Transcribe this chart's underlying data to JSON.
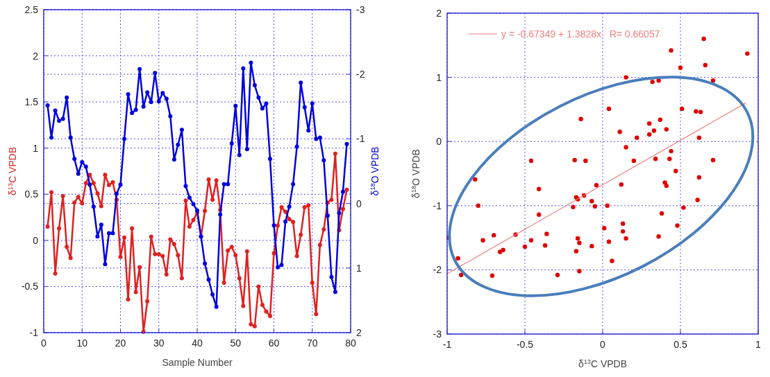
{
  "chart_data": [
    {
      "type": "line",
      "xlabel": "Sample Number",
      "ylabel": "δ$^{13}$C VPDB",
      "y2label": "δ$^{18}$O VPDB",
      "xlim": [
        0,
        80
      ],
      "xticks": [
        0,
        10,
        20,
        30,
        40,
        50,
        60,
        70,
        80
      ],
      "ylim": [
        -1,
        2.5
      ],
      "yticks": [
        -1,
        -0.5,
        0,
        0.5,
        1,
        1.5,
        2,
        2.5
      ],
      "y2lim": [
        2,
        -3
      ],
      "y2ticks": [
        -3,
        -2,
        -1,
        0,
        1,
        2
      ],
      "grid": true,
      "marker": "circle",
      "line_style": "solid",
      "x": [
        1,
        2,
        3,
        4,
        5,
        6,
        7,
        8,
        9,
        10,
        11,
        12,
        13,
        14,
        15,
        16,
        17,
        18,
        19,
        20,
        21,
        22,
        23,
        24,
        25,
        26,
        27,
        28,
        29,
        30,
        31,
        32,
        33,
        34,
        35,
        36,
        37,
        38,
        39,
        40,
        41,
        42,
        43,
        44,
        45,
        46,
        47,
        48,
        49,
        50,
        51,
        52,
        53,
        54,
        55,
        56,
        57,
        58,
        59,
        60,
        61,
        62,
        63,
        64,
        65,
        66,
        67,
        68,
        69,
        70,
        71,
        72,
        73,
        74,
        75,
        76,
        77,
        78,
        79
      ],
      "series": [
        {
          "color": "#e02020",
          "values": [
            0.15,
            0.52,
            -0.36,
            0.13,
            0.48,
            -0.07,
            -0.19,
            0.41,
            0.47,
            0.4,
            0.62,
            0.71,
            0.62,
            0.51,
            0.37,
            0.71,
            0.6,
            0.63,
            0.44,
            -0.18,
            0.03,
            -0.64,
            0.13,
            -0.56,
            -0.29,
            -0.99,
            -0.66,
            0.04,
            -0.15,
            -0.15,
            -0.17,
            -0.37,
            0.01,
            -0.04,
            -0.16,
            -0.41,
            0.43,
            0.15,
            0.22,
            0.3,
            0.04,
            0.32,
            0.66,
            0.44,
            0.65,
            0.33,
            -0.46,
            -0.11,
            -0.07,
            -0.16,
            -0.41,
            -0.71,
            -0.12,
            -0.91,
            -0.93,
            -0.5,
            -0.7,
            -0.77,
            -0.82,
            -0.14,
            0.16,
            0.36,
            0.31,
            0.23,
            0.2,
            -0.17,
            0.06,
            0.36,
            0.38,
            -0.46,
            -0.8,
            -0.05,
            0.12,
            0.41,
            0.44,
            0.94,
            0.11,
            0.34,
            0.55
          ]
        },
        {
          "color": "#0000dd",
          "axis": "y2",
          "values": [
            -1.52,
            -1.02,
            -1.44,
            -1.28,
            -1.31,
            -1.64,
            -1.02,
            -0.69,
            -0.46,
            -0.64,
            -0.57,
            -0.29,
            0.05,
            0.51,
            0.33,
            0.94,
            0.46,
            0.46,
            -0.15,
            -0.29,
            -1.0,
            -1.69,
            -1.4,
            -1.45,
            -2.08,
            -1.5,
            -1.72,
            -1.57,
            -2.02,
            -1.58,
            -1.71,
            -1.62,
            -1.35,
            -0.68,
            -0.91,
            -1.14,
            -0.27,
            -0.09,
            0.01,
            0.11,
            0.51,
            0.93,
            1.18,
            1.41,
            1.6,
            0.17,
            -0.3,
            -0.3,
            -0.93,
            -1.51,
            -0.75,
            -2.09,
            -0.84,
            -2.18,
            -1.83,
            -1.64,
            -1.47,
            -1.55,
            -0.69,
            0.34,
            0.99,
            0.95,
            0.28,
            0.05,
            -0.3,
            -0.88,
            -1.87,
            -1.49,
            -1.13,
            -1.55,
            -1.0,
            -1.02,
            -0.67,
            0.19,
            1.14,
            1.37,
            0.15,
            -0.18,
            -0.92
          ]
        }
      ]
    },
    {
      "type": "scatter",
      "xlabel": "δ$^{13}$C VPDB",
      "ylabel": "δ$^{18}$O VPDB",
      "xlim": [
        -1,
        1
      ],
      "xticks": [
        -1,
        -0.5,
        0,
        0.5,
        1
      ],
      "ylim": [
        -3,
        2
      ],
      "yticks": [
        -3,
        -2,
        -1,
        0,
        1,
        2
      ],
      "grid": true,
      "marker": "circle",
      "legend": "top left",
      "series": [
        {
          "color": "#e00000",
          "x": [
            -0.99,
            -0.93,
            -0.91,
            -0.82,
            -0.8,
            -0.77,
            -0.71,
            -0.7,
            -0.66,
            -0.64,
            -0.56,
            -0.5,
            -0.46,
            -0.46,
            -0.41,
            -0.41,
            -0.37,
            -0.36,
            -0.29,
            -0.19,
            -0.18,
            -0.17,
            -0.16,
            -0.17,
            -0.16,
            -0.15,
            -0.15,
            -0.14,
            -0.12,
            -0.11,
            -0.07,
            -0.05,
            -0.04,
            -0.07,
            0.01,
            0.03,
            0.04,
            0.04,
            0.06,
            0.11,
            0.12,
            0.13,
            0.13,
            0.15,
            0.15,
            0.15,
            0.2,
            0.22,
            0.3,
            0.3,
            0.32,
            0.33,
            0.34,
            0.36,
            0.36,
            0.37,
            0.38,
            0.4,
            0.41,
            0.41,
            0.43,
            0.44,
            0.44,
            0.47,
            0.48,
            0.5,
            0.51,
            0.52,
            0.6,
            0.61,
            0.62,
            0.62,
            0.63,
            0.65,
            0.66,
            0.71,
            0.71,
            0.93
          ],
          "values": [
            -1.5,
            -1.82,
            -2.08,
            -0.59,
            -1.0,
            -1.54,
            -2.09,
            -1.46,
            -1.72,
            -1.69,
            -1.45,
            -1.64,
            -0.3,
            -1.54,
            -0.74,
            -1.14,
            -1.62,
            -1.44,
            -2.08,
            -1.02,
            -0.29,
            -0.87,
            -0.9,
            -1.71,
            -1.51,
            -1.58,
            -2.02,
            0.35,
            -0.84,
            -0.3,
            -0.93,
            -1.01,
            -0.68,
            -1.63,
            -1.35,
            -1.0,
            0.51,
            -1.56,
            -1.86,
            0.15,
            -0.67,
            -1.28,
            -1.4,
            -1.51,
            -0.09,
            1.0,
            -0.3,
            0.06,
            0.28,
            0.11,
            0.93,
            0.17,
            -0.27,
            0.95,
            -1.48,
            0.34,
            -1.12,
            -0.64,
            0.19,
            -0.69,
            -0.27,
            -0.15,
            1.42,
            -0.46,
            -1.31,
            1.15,
            0.51,
            -1.03,
            0.47,
            -0.91,
            -0.56,
            0.06,
            0.46,
            1.6,
            1.19,
            0.95,
            -0.29,
            1.37
          ]
        },
        {
          "type": "line",
          "name": "y = -0.67349 + 1.3828x   R= 0.66057",
          "color": "#f08080",
          "marker": "none",
          "x": [
            -1,
            0.92
          ],
          "values": [
            -2.06,
            0.6
          ]
        }
      ]
    }
  ]
}
